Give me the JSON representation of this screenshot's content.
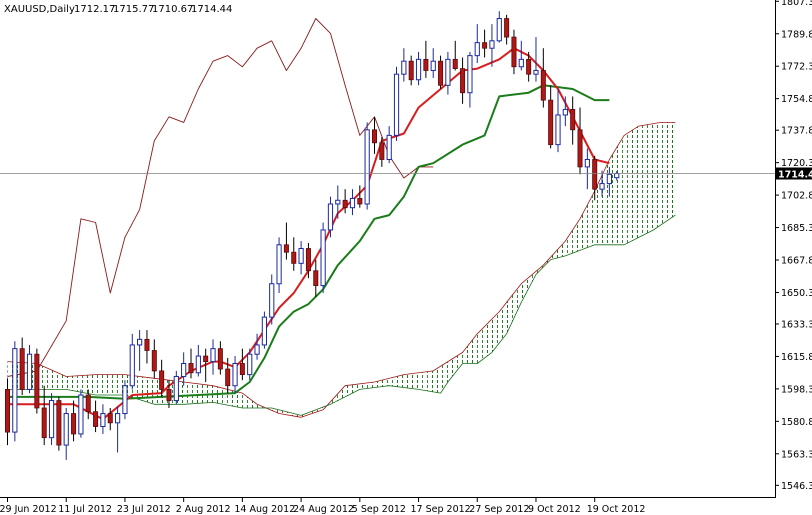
{
  "chart_data": {
    "type": "candlestick",
    "symbol": "XAUUSD,Daily",
    "ohlc_header": [
      "1712.17",
      "1715.77",
      "1710.67",
      "1714.44"
    ],
    "current_price": 1714.44,
    "current_price_label": "1714.44",
    "ylim": [
      1540,
      1808
    ],
    "y_ticks": [
      1546.3,
      1563.3,
      1580.8,
      1598.3,
      1615.8,
      1633.3,
      1650.3,
      1667.8,
      1685.3,
      1702.8,
      1720.3,
      1737.8,
      1754.8,
      1772.3,
      1789.8,
      1807.3
    ],
    "y_tick_labels": [
      "1546.30",
      "1563.30",
      "1580.80",
      "1598.30",
      "1615.80",
      "1633.30",
      "1650.30",
      "1667.80",
      "1685.30",
      "1702.80",
      "1720.30",
      "1737.80",
      "1754.80",
      "1772.30",
      "1789.80",
      "1807.30"
    ],
    "x_ticks": [
      {
        "bar": 0,
        "label": "29 Jun 2012"
      },
      {
        "bar": 8,
        "label": "11 Jul 2012"
      },
      {
        "bar": 16,
        "label": "23 Jul 2012"
      },
      {
        "bar": 24,
        "label": "2 Aug 2012"
      },
      {
        "bar": 32,
        "label": "14 Aug 2012"
      },
      {
        "bar": 40,
        "label": "24 Aug 2012"
      },
      {
        "bar": 48,
        "label": "5 Sep 2012"
      },
      {
        "bar": 56,
        "label": "17 Sep 2012"
      },
      {
        "bar": 64,
        "label": "27 Sep 2012"
      },
      {
        "bar": 72,
        "label": "9 Oct 2012"
      },
      {
        "bar": 80,
        "label": "19 Oct 2012"
      }
    ],
    "candles": [
      [
        1598,
        1604,
        1568,
        1575
      ],
      [
        1575,
        1624,
        1570,
        1620
      ],
      [
        1620,
        1626,
        1595,
        1598
      ],
      [
        1598,
        1622,
        1596,
        1617
      ],
      [
        1617,
        1620,
        1585,
        1588
      ],
      [
        1588,
        1600,
        1568,
        1572
      ],
      [
        1572,
        1596,
        1568,
        1592
      ],
      [
        1592,
        1594,
        1565,
        1568
      ],
      [
        1568,
        1588,
        1560,
        1585
      ],
      [
        1585,
        1592,
        1570,
        1574
      ],
      [
        1574,
        1598,
        1572,
        1595
      ],
      [
        1595,
        1598,
        1582,
        1586
      ],
      [
        1586,
        1592,
        1575,
        1578
      ],
      [
        1578,
        1590,
        1574,
        1585
      ],
      [
        1585,
        1588,
        1576,
        1580
      ],
      [
        1580,
        1589,
        1564,
        1585
      ],
      [
        1585,
        1603,
        1582,
        1600
      ],
      [
        1600,
        1628,
        1598,
        1622
      ],
      [
        1622,
        1630,
        1608,
        1625
      ],
      [
        1625,
        1630,
        1612,
        1619
      ],
      [
        1619,
        1625,
        1604,
        1608
      ],
      [
        1608,
        1614,
        1594,
        1598
      ],
      [
        1598,
        1603,
        1588,
        1592
      ],
      [
        1592,
        1608,
        1590,
        1605
      ],
      [
        1605,
        1618,
        1600,
        1612
      ],
      [
        1612,
        1620,
        1604,
        1607
      ],
      [
        1607,
        1622,
        1605,
        1616
      ],
      [
        1616,
        1620,
        1602,
        1613
      ],
      [
        1613,
        1625,
        1606,
        1620
      ],
      [
        1620,
        1624,
        1606,
        1609
      ],
      [
        1609,
        1615,
        1596,
        1600
      ],
      [
        1600,
        1616,
        1596,
        1612
      ],
      [
        1612,
        1620,
        1603,
        1606
      ],
      [
        1606,
        1620,
        1603,
        1617
      ],
      [
        1617,
        1628,
        1614,
        1622
      ],
      [
        1622,
        1640,
        1620,
        1637
      ],
      [
        1637,
        1660,
        1633,
        1655
      ],
      [
        1655,
        1680,
        1650,
        1676
      ],
      [
        1676,
        1688,
        1668,
        1672
      ],
      [
        1672,
        1680,
        1662,
        1666
      ],
      [
        1666,
        1678,
        1660,
        1674
      ],
      [
        1674,
        1677,
        1658,
        1662
      ],
      [
        1662,
        1668,
        1648,
        1654
      ],
      [
        1654,
        1688,
        1650,
        1684
      ],
      [
        1684,
        1702,
        1680,
        1698
      ],
      [
        1698,
        1708,
        1690,
        1700
      ],
      [
        1700,
        1706,
        1693,
        1696
      ],
      [
        1696,
        1706,
        1692,
        1701
      ],
      [
        1701,
        1708,
        1696,
        1698
      ],
      [
        1698,
        1742,
        1695,
        1738
      ],
      [
        1738,
        1745,
        1725,
        1731
      ],
      [
        1731,
        1734,
        1718,
        1722
      ],
      [
        1722,
        1740,
        1720,
        1735
      ],
      [
        1735,
        1772,
        1732,
        1768
      ],
      [
        1768,
        1782,
        1764,
        1775
      ],
      [
        1775,
        1778,
        1762,
        1765
      ],
      [
        1765,
        1780,
        1762,
        1776
      ],
      [
        1776,
        1786,
        1766,
        1770
      ],
      [
        1770,
        1782,
        1766,
        1775
      ],
      [
        1775,
        1778,
        1760,
        1762
      ],
      [
        1762,
        1780,
        1757,
        1776
      ],
      [
        1776,
        1786,
        1770,
        1771
      ],
      [
        1771,
        1777,
        1752,
        1758
      ],
      [
        1758,
        1780,
        1750,
        1778
      ],
      [
        1778,
        1795,
        1774,
        1785
      ],
      [
        1785,
        1792,
        1777,
        1782
      ],
      [
        1782,
        1795,
        1772,
        1786
      ],
      [
        1786,
        1802,
        1785,
        1798
      ],
      [
        1798,
        1800,
        1784,
        1788
      ],
      [
        1788,
        1792,
        1768,
        1772
      ],
      [
        1772,
        1786,
        1770,
        1776
      ],
      [
        1776,
        1780,
        1764,
        1768
      ],
      [
        1768,
        1788,
        1764,
        1770
      ],
      [
        1770,
        1782,
        1750,
        1754
      ],
      [
        1754,
        1762,
        1728,
        1730
      ],
      [
        1730,
        1760,
        1726,
        1746
      ],
      [
        1746,
        1756,
        1740,
        1749
      ],
      [
        1749,
        1756,
        1730,
        1738
      ],
      [
        1738,
        1750,
        1714,
        1718
      ],
      [
        1718,
        1728,
        1706,
        1722
      ],
      [
        1722,
        1724,
        1700,
        1706
      ],
      [
        1706,
        1716,
        1702,
        1709
      ],
      [
        1709,
        1718,
        1702,
        1714
      ],
      [
        1712.17,
        1715.77,
        1710.67,
        1714.44
      ]
    ],
    "tenkan_sen": [
      [
        0,
        1590
      ],
      [
        5,
        1590
      ],
      [
        9,
        1590
      ],
      [
        13,
        1582
      ],
      [
        17,
        1595
      ],
      [
        21,
        1596
      ],
      [
        22,
        1600
      ],
      [
        25,
        1608
      ],
      [
        28,
        1613
      ],
      [
        29,
        1613
      ],
      [
        31,
        1610
      ],
      [
        33,
        1618
      ],
      [
        35,
        1630
      ],
      [
        37,
        1642
      ],
      [
        39,
        1650
      ],
      [
        41,
        1662
      ],
      [
        43,
        1676
      ],
      [
        45,
        1693
      ],
      [
        47,
        1700
      ],
      [
        49,
        1708
      ],
      [
        51,
        1732
      ],
      [
        54,
        1736
      ],
      [
        56,
        1750
      ],
      [
        59,
        1760
      ],
      [
        62,
        1770
      ],
      [
        64,
        1771
      ],
      [
        67,
        1776
      ],
      [
        69,
        1782
      ],
      [
        71,
        1778
      ],
      [
        73,
        1770
      ],
      [
        75,
        1760
      ],
      [
        77,
        1745
      ],
      [
        80,
        1722
      ],
      [
        82,
        1720
      ]
    ],
    "kijun_sen": [
      [
        0,
        1594
      ],
      [
        5,
        1594
      ],
      [
        11,
        1594
      ],
      [
        16,
        1593
      ],
      [
        21,
        1594
      ],
      [
        31,
        1596
      ],
      [
        33,
        1602
      ],
      [
        35,
        1615
      ],
      [
        37,
        1632
      ],
      [
        39,
        1640
      ],
      [
        41,
        1644
      ],
      [
        43,
        1652
      ],
      [
        45,
        1665
      ],
      [
        48,
        1678
      ],
      [
        50,
        1690
      ],
      [
        52,
        1692
      ],
      [
        54,
        1702
      ],
      [
        56,
        1718
      ],
      [
        58,
        1720
      ],
      [
        62,
        1730
      ],
      [
        65,
        1735
      ],
      [
        67,
        1756
      ],
      [
        71,
        1758
      ],
      [
        73,
        1762
      ],
      [
        77,
        1760
      ],
      [
        80,
        1754
      ],
      [
        82,
        1754
      ]
    ],
    "chikou_span": [
      [
        0,
        1605
      ],
      [
        4,
        1608
      ],
      [
        8,
        1635
      ],
      [
        10,
        1690
      ],
      [
        12,
        1688
      ],
      [
        14,
        1650
      ],
      [
        16,
        1680
      ],
      [
        18,
        1695
      ],
      [
        20,
        1732
      ],
      [
        22,
        1745
      ],
      [
        24,
        1742
      ],
      [
        26,
        1760
      ],
      [
        28,
        1775
      ],
      [
        30,
        1778
      ],
      [
        32,
        1772
      ],
      [
        34,
        1782
      ],
      [
        36,
        1786
      ],
      [
        38,
        1770
      ],
      [
        40,
        1782
      ],
      [
        42,
        1798
      ],
      [
        44,
        1790
      ],
      [
        46,
        1762
      ],
      [
        48,
        1735
      ],
      [
        50,
        1745
      ],
      [
        52,
        1724
      ],
      [
        54,
        1712
      ],
      [
        56,
        1718
      ],
      [
        58,
        1718
      ]
    ],
    "senkou_span_a": [
      [
        0,
        1613
      ],
      [
        4,
        1612
      ],
      [
        8,
        1605
      ],
      [
        12,
        1606
      ],
      [
        16,
        1606
      ],
      [
        20,
        1604
      ],
      [
        24,
        1602
      ],
      [
        28,
        1600
      ],
      [
        32,
        1596
      ],
      [
        34,
        1590
      ],
      [
        37,
        1585
      ],
      [
        40,
        1583
      ],
      [
        43,
        1587
      ],
      [
        46,
        1600
      ],
      [
        50,
        1602
      ],
      [
        54,
        1606
      ],
      [
        58,
        1608
      ],
      [
        62,
        1618
      ],
      [
        64,
        1628
      ],
      [
        67,
        1640
      ],
      [
        70,
        1655
      ],
      [
        73,
        1665
      ],
      [
        76,
        1678
      ],
      [
        78,
        1690
      ],
      [
        80,
        1705
      ],
      [
        82,
        1722
      ],
      [
        84,
        1735
      ],
      [
        86,
        1740
      ],
      [
        89,
        1742
      ],
      [
        91,
        1742
      ]
    ],
    "senkou_span_b": [
      [
        0,
        1598
      ],
      [
        8,
        1598
      ],
      [
        12,
        1595
      ],
      [
        16,
        1595
      ],
      [
        20,
        1590
      ],
      [
        24,
        1590
      ],
      [
        28,
        1591
      ],
      [
        32,
        1588
      ],
      [
        36,
        1588
      ],
      [
        40,
        1584
      ],
      [
        44,
        1590
      ],
      [
        48,
        1598
      ],
      [
        52,
        1600
      ],
      [
        56,
        1598
      ],
      [
        59,
        1596
      ],
      [
        60,
        1602
      ],
      [
        62,
        1612
      ],
      [
        64,
        1612
      ],
      [
        66,
        1618
      ],
      [
        68,
        1628
      ],
      [
        70,
        1645
      ],
      [
        72,
        1660
      ],
      [
        74,
        1668
      ],
      [
        76,
        1670
      ],
      [
        80,
        1676
      ],
      [
        84,
        1676
      ],
      [
        86,
        1680
      ],
      [
        88,
        1684
      ],
      [
        91,
        1692
      ]
    ]
  }
}
